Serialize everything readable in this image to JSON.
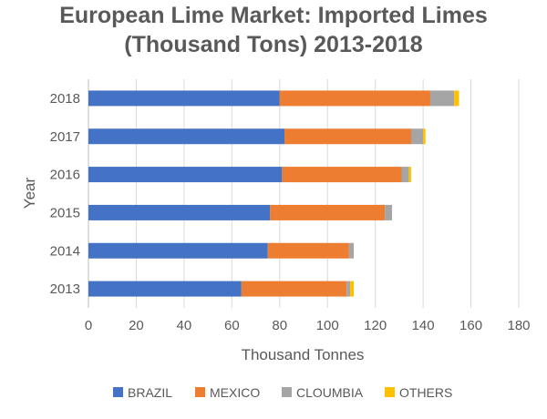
{
  "chart_data": {
    "type": "bar",
    "orientation": "horizontal",
    "stacked": true,
    "title_line1": "European Lime Market: Imported Limes",
    "title_line2": "(Thousand Tons) 2013-2018",
    "xlabel": "Thousand Tonnes",
    "ylabel": "Year",
    "xlim": [
      0,
      180
    ],
    "x_ticks": [
      0,
      20,
      40,
      60,
      80,
      100,
      120,
      140,
      160,
      180
    ],
    "categories": [
      "2013",
      "2014",
      "2015",
      "2016",
      "2017",
      "2018"
    ],
    "series": [
      {
        "name": "BRAZIL",
        "color": "#4472c4",
        "values": [
          64,
          75,
          76,
          81,
          82,
          80
        ]
      },
      {
        "name": "MEXICO",
        "color": "#ed7d31",
        "values": [
          44,
          34,
          48,
          50,
          53,
          63
        ]
      },
      {
        "name": "CLOUMBIA",
        "color": "#a5a5a5",
        "values": [
          1.5,
          2,
          3,
          3,
          5,
          10
        ]
      },
      {
        "name": "OTHERS",
        "color": "#ffc000",
        "values": [
          1.5,
          0,
          0,
          1,
          1,
          2
        ]
      }
    ],
    "grid": true,
    "legend_position": "bottom"
  }
}
